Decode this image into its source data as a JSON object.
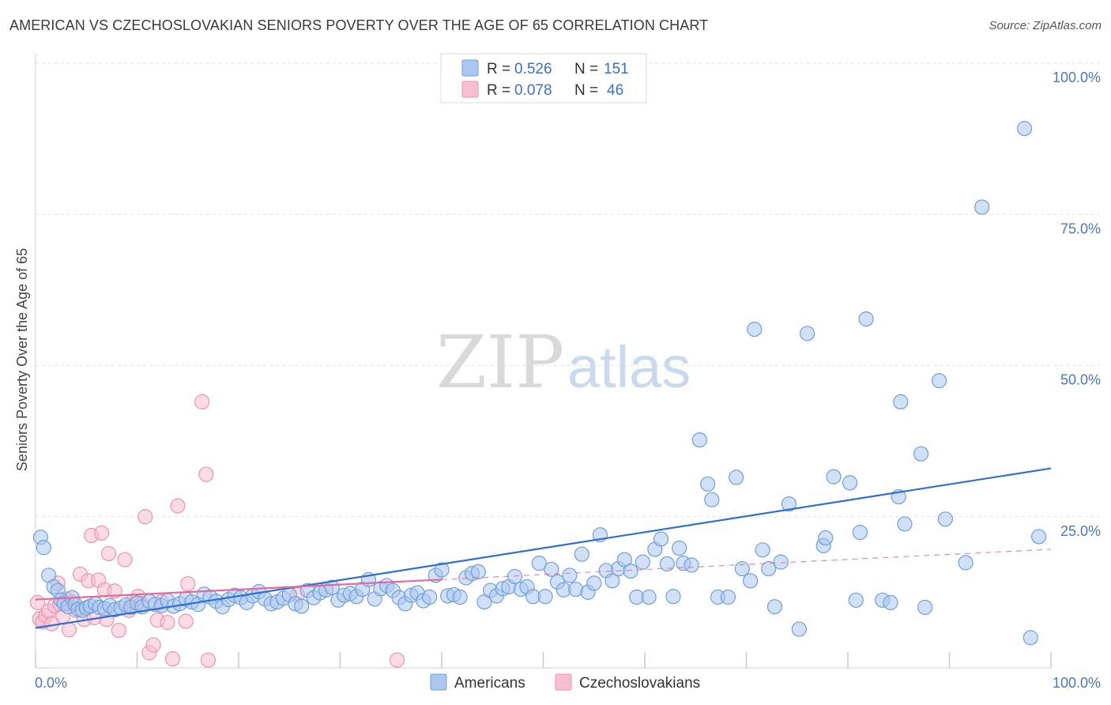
{
  "title": "AMERICAN VS CZECHOSLOVAKIAN SENIORS POVERTY OVER THE AGE OF 65 CORRELATION CHART",
  "source": "Source: ZipAtlas.com",
  "watermark": {
    "zip": "ZIP",
    "atlas": "atlas"
  },
  "legend": {
    "r_label": "R =",
    "n_label": "N =",
    "americans": {
      "r": "0.526",
      "n": "151"
    },
    "czechoslovakians": {
      "r": "0.078",
      "n": "46"
    }
  },
  "bottom_legend": {
    "americans": "Americans",
    "czechoslovakians": "Czechoslovakians"
  },
  "colors": {
    "americans_fill": "#a9c7ef",
    "americans_stroke": "#6f9fdc",
    "americans_line": "#2f6fce",
    "czech_fill": "#f7bfd0",
    "czech_stroke": "#ee93b0",
    "czech_line": "#e2699a",
    "grid": "#e2e2e2",
    "axis_text": "#4a78c4"
  },
  "chart_data": {
    "type": "scatter",
    "title": "AMERICAN VS CZECHOSLOVAKIAN SENIORS POVERTY OVER THE AGE OF 65 CORRELATION CHART",
    "xlabel": "",
    "ylabel": "Seniors Poverty Over the Age of 65",
    "xlim": [
      0,
      100
    ],
    "ylim": [
      0,
      100
    ],
    "x_tick_labels": [
      "0.0%",
      "100.0%"
    ],
    "y_ticks": [
      25,
      50,
      75,
      100
    ],
    "y_tick_labels": [
      "25.0%",
      "50.0%",
      "75.0%",
      "100.0%"
    ],
    "grid": true,
    "legend_position": "top-center",
    "series": [
      {
        "name": "Americans",
        "r": 0.526,
        "n": 151,
        "trend": [
          [
            0,
            6.6
          ],
          [
            100,
            33.0
          ]
        ],
        "points": [
          [
            0.5,
            21.6
          ],
          [
            0.8,
            19.9
          ],
          [
            1.3,
            15.3
          ],
          [
            1.8,
            13.4
          ],
          [
            2.2,
            12.8
          ],
          [
            2.5,
            11.2
          ],
          [
            2.8,
            10.6
          ],
          [
            3.2,
            10.1
          ],
          [
            3.6,
            11.6
          ],
          [
            3.9,
            10.5
          ],
          [
            4.2,
            9.7
          ],
          [
            4.6,
            9.5
          ],
          [
            5.0,
            9.9
          ],
          [
            5.4,
            10.2
          ],
          [
            5.9,
            10.6
          ],
          [
            6.3,
            10.0
          ],
          [
            6.8,
            9.8
          ],
          [
            7.3,
            10.3
          ],
          [
            7.8,
            9.6
          ],
          [
            8.4,
            9.9
          ],
          [
            8.9,
            10.4
          ],
          [
            9.4,
            10.0
          ],
          [
            10.0,
            10.7
          ],
          [
            10.5,
            10.1
          ],
          [
            11.2,
            11.0
          ],
          [
            11.8,
            10.5
          ],
          [
            12.4,
            10.3
          ],
          [
            13.0,
            11.1
          ],
          [
            13.6,
            10.2
          ],
          [
            14.2,
            10.6
          ],
          [
            14.8,
            11.4
          ],
          [
            15.4,
            10.9
          ],
          [
            16.0,
            10.5
          ],
          [
            16.6,
            12.2
          ],
          [
            17.2,
            11.7
          ],
          [
            17.8,
            11.0
          ],
          [
            18.4,
            10.1
          ],
          [
            19.0,
            11.3
          ],
          [
            19.6,
            12.0
          ],
          [
            20.2,
            11.6
          ],
          [
            20.8,
            10.8
          ],
          [
            21.4,
            11.9
          ],
          [
            22.0,
            12.6
          ],
          [
            22.6,
            11.4
          ],
          [
            23.2,
            10.6
          ],
          [
            23.8,
            10.9
          ],
          [
            24.4,
            11.5
          ],
          [
            25.0,
            12.1
          ],
          [
            25.6,
            10.6
          ],
          [
            26.2,
            10.2
          ],
          [
            26.8,
            12.8
          ],
          [
            27.4,
            11.6
          ],
          [
            28.0,
            12.4
          ],
          [
            28.6,
            12.9
          ],
          [
            29.2,
            13.3
          ],
          [
            29.8,
            11.2
          ],
          [
            30.4,
            12.0
          ],
          [
            31.0,
            12.3
          ],
          [
            31.6,
            11.8
          ],
          [
            32.2,
            13.0
          ],
          [
            32.8,
            14.6
          ],
          [
            33.4,
            11.4
          ],
          [
            34.0,
            13.1
          ],
          [
            34.6,
            13.6
          ],
          [
            35.2,
            12.8
          ],
          [
            35.8,
            11.6
          ],
          [
            36.4,
            10.6
          ],
          [
            37.0,
            12.0
          ],
          [
            37.6,
            12.4
          ],
          [
            38.2,
            11.1
          ],
          [
            38.8,
            11.7
          ],
          [
            39.4,
            15.3
          ],
          [
            40.0,
            16.2
          ],
          [
            40.6,
            11.9
          ],
          [
            41.2,
            12.1
          ],
          [
            41.8,
            11.7
          ],
          [
            42.4,
            14.9
          ],
          [
            43.0,
            15.6
          ],
          [
            43.6,
            15.9
          ],
          [
            44.2,
            10.9
          ],
          [
            44.8,
            12.8
          ],
          [
            45.4,
            11.9
          ],
          [
            46.0,
            13.1
          ],
          [
            46.6,
            13.4
          ],
          [
            47.2,
            15.1
          ],
          [
            47.8,
            13.0
          ],
          [
            48.4,
            13.4
          ],
          [
            49.0,
            11.8
          ],
          [
            49.6,
            17.3
          ],
          [
            50.2,
            11.8
          ],
          [
            50.8,
            16.3
          ],
          [
            51.4,
            14.2
          ],
          [
            52.0,
            12.9
          ],
          [
            52.6,
            15.3
          ],
          [
            53.2,
            13.0
          ],
          [
            53.8,
            18.8
          ],
          [
            54.4,
            12.5
          ],
          [
            55.0,
            14.0
          ],
          [
            55.6,
            22.0
          ],
          [
            56.2,
            16.1
          ],
          [
            56.8,
            14.4
          ],
          [
            57.4,
            16.4
          ],
          [
            58.0,
            17.9
          ],
          [
            58.6,
            16.0
          ],
          [
            59.2,
            11.7
          ],
          [
            59.8,
            17.5
          ],
          [
            60.4,
            11.7
          ],
          [
            61.0,
            19.6
          ],
          [
            61.6,
            21.3
          ],
          [
            62.2,
            17.2
          ],
          [
            62.8,
            11.8
          ],
          [
            63.4,
            19.8
          ],
          [
            63.8,
            17.3
          ],
          [
            64.6,
            17.0
          ],
          [
            65.4,
            37.7
          ],
          [
            66.2,
            30.4
          ],
          [
            66.6,
            27.8
          ],
          [
            67.2,
            11.7
          ],
          [
            68.2,
            11.7
          ],
          [
            69.0,
            31.5
          ],
          [
            69.6,
            16.4
          ],
          [
            70.4,
            14.4
          ],
          [
            70.8,
            56.0
          ],
          [
            71.6,
            19.5
          ],
          [
            72.2,
            16.4
          ],
          [
            72.8,
            10.1
          ],
          [
            73.4,
            17.5
          ],
          [
            74.2,
            27.1
          ],
          [
            75.2,
            6.4
          ],
          [
            76.0,
            55.3
          ],
          [
            77.6,
            20.2
          ],
          [
            77.8,
            21.5
          ],
          [
            78.6,
            31.6
          ],
          [
            80.2,
            30.6
          ],
          [
            80.8,
            11.2
          ],
          [
            81.2,
            22.4
          ],
          [
            81.8,
            57.7
          ],
          [
            83.4,
            11.2
          ],
          [
            84.2,
            10.8
          ],
          [
            85.0,
            28.3
          ],
          [
            85.2,
            44.0
          ],
          [
            85.6,
            23.8
          ],
          [
            87.2,
            35.4
          ],
          [
            87.6,
            10.0
          ],
          [
            89.0,
            47.5
          ],
          [
            89.6,
            24.6
          ],
          [
            91.6,
            17.4
          ],
          [
            93.2,
            76.2
          ],
          [
            97.4,
            89.2
          ],
          [
            98.0,
            5.0
          ],
          [
            98.8,
            21.7
          ]
        ]
      },
      {
        "name": "Czechoslovakians",
        "r": 0.078,
        "n": 46,
        "trend": [
          [
            0,
            11.3
          ],
          [
            40,
            14.6
          ]
        ],
        "trend_dashed_extension": [
          [
            40,
            14.6
          ],
          [
            100,
            19.6
          ]
        ],
        "points": [
          [
            0.2,
            10.8
          ],
          [
            0.4,
            8.1
          ],
          [
            0.7,
            7.6
          ],
          [
            1.0,
            8.6
          ],
          [
            1.3,
            9.4
          ],
          [
            1.6,
            7.3
          ],
          [
            1.9,
            10.3
          ],
          [
            2.2,
            14.0
          ],
          [
            2.4,
            10.5
          ],
          [
            2.7,
            8.5
          ],
          [
            3.0,
            11.4
          ],
          [
            3.3,
            6.3
          ],
          [
            3.6,
            10.9
          ],
          [
            4.0,
            9.5
          ],
          [
            4.4,
            15.5
          ],
          [
            4.8,
            8.0
          ],
          [
            5.2,
            14.4
          ],
          [
            5.5,
            21.9
          ],
          [
            5.8,
            8.3
          ],
          [
            6.2,
            14.5
          ],
          [
            6.5,
            22.3
          ],
          [
            6.8,
            12.9
          ],
          [
            7.0,
            8.0
          ],
          [
            7.2,
            18.9
          ],
          [
            7.8,
            12.7
          ],
          [
            8.2,
            6.2
          ],
          [
            8.8,
            17.9
          ],
          [
            9.2,
            9.5
          ],
          [
            9.6,
            11.0
          ],
          [
            10.1,
            11.8
          ],
          [
            10.4,
            10.6
          ],
          [
            10.8,
            25.0
          ],
          [
            11.2,
            2.5
          ],
          [
            11.6,
            3.8
          ],
          [
            12.0,
            7.9
          ],
          [
            12.4,
            10.9
          ],
          [
            13.0,
            7.5
          ],
          [
            13.5,
            1.5
          ],
          [
            14.0,
            26.8
          ],
          [
            14.8,
            7.7
          ],
          [
            15.0,
            13.9
          ],
          [
            16.4,
            44.0
          ],
          [
            16.8,
            32.0
          ],
          [
            17.0,
            1.3
          ],
          [
            25.8,
            12.1
          ],
          [
            35.6,
            1.3
          ]
        ]
      }
    ]
  }
}
